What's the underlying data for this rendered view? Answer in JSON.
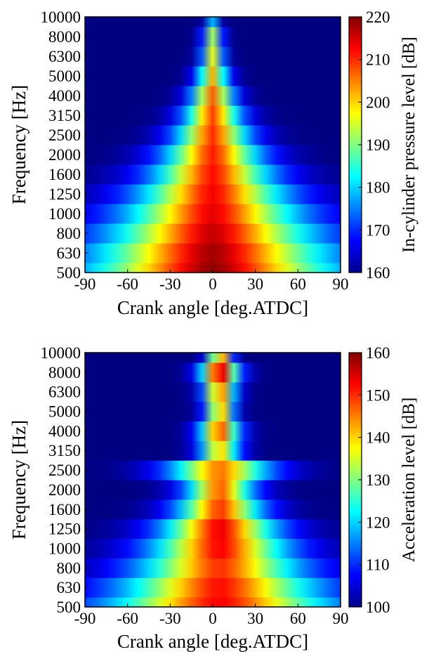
{
  "chart_data": [
    {
      "type": "heatmap",
      "xlabel": "Crank angle [deg.ATDC]",
      "ylabel": "Frequency [Hz]",
      "x_ticks": [
        -90,
        -60,
        -30,
        0,
        30,
        60,
        90
      ],
      "x_tick_labels": [
        "-90",
        "-60",
        "-30",
        "0",
        "30",
        "60",
        "90"
      ],
      "xlim": [
        -90,
        90
      ],
      "y_tick_labels": [
        "500",
        "630",
        "800",
        "1000",
        "1250",
        "1600",
        "2000",
        "2500",
        "3150",
        "4000",
        "5000",
        "6300",
        "8000",
        "10000"
      ],
      "colorbar_label": "In-cylinder pressure level [dB]",
      "colorbar_ticks": [
        160,
        170,
        180,
        190,
        200,
        210,
        220
      ],
      "colorbar_tick_labels": [
        "160",
        "170",
        "180",
        "190",
        "200",
        "210",
        "220"
      ],
      "clim": [
        160,
        220
      ],
      "colormap": "jet",
      "level_by_band": [
        {
          "freq": "500",
          "peak_db": 219,
          "half_width_deg": 88
        },
        {
          "freq": "630",
          "peak_db": 218,
          "half_width_deg": 82
        },
        {
          "freq": "800",
          "peak_db": 216,
          "half_width_deg": 72
        },
        {
          "freq": "1000",
          "peak_db": 214,
          "half_width_deg": 62
        },
        {
          "freq": "1250",
          "peak_db": 213,
          "half_width_deg": 52
        },
        {
          "freq": "1600",
          "peak_db": 212,
          "half_width_deg": 42
        },
        {
          "freq": "2000",
          "peak_db": 211,
          "half_width_deg": 34
        },
        {
          "freq": "2500",
          "peak_db": 210,
          "half_width_deg": 26
        },
        {
          "freq": "3150",
          "peak_db": 209,
          "half_width_deg": 20
        },
        {
          "freq": "4000",
          "peak_db": 207,
          "half_width_deg": 15
        },
        {
          "freq": "5000",
          "peak_db": 202,
          "half_width_deg": 11
        },
        {
          "freq": "6300",
          "peak_db": 196,
          "half_width_deg": 8
        },
        {
          "freq": "8000",
          "peak_db": 192,
          "half_width_deg": 7
        },
        {
          "freq": "10000",
          "peak_db": 178,
          "half_width_deg": 5
        }
      ]
    },
    {
      "type": "heatmap",
      "xlabel": "Crank angle [deg.ATDC]",
      "ylabel": "Frequency [Hz]",
      "x_ticks": [
        -90,
        -60,
        -30,
        0,
        30,
        60,
        90
      ],
      "x_tick_labels": [
        "-90",
        "-60",
        "-30",
        "0",
        "30",
        "60",
        "90"
      ],
      "xlim": [
        -90,
        90
      ],
      "y_tick_labels": [
        "500",
        "630",
        "800",
        "1000",
        "1250",
        "1600",
        "2000",
        "2500",
        "3150",
        "4000",
        "5000",
        "6300",
        "8000",
        "10000"
      ],
      "colorbar_label": "Acceleration level [dB]",
      "colorbar_ticks": [
        100,
        110,
        120,
        130,
        140,
        150,
        160
      ],
      "colorbar_tick_labels": [
        "100",
        "110",
        "120",
        "130",
        "140",
        "150",
        "160"
      ],
      "clim": [
        100,
        160
      ],
      "colormap": "jet",
      "level_by_band": [
        {
          "freq": "500",
          "peak_db": 153,
          "half_width_deg": 80
        },
        {
          "freq": "630",
          "peak_db": 152,
          "half_width_deg": 70
        },
        {
          "freq": "800",
          "peak_db": 150,
          "half_width_deg": 58
        },
        {
          "freq": "1000",
          "peak_db": 153,
          "half_width_deg": 48
        },
        {
          "freq": "1250",
          "peak_db": 154,
          "half_width_deg": 40
        },
        {
          "freq": "1600",
          "peak_db": 150,
          "half_width_deg": 30
        },
        {
          "freq": "2000",
          "peak_db": 148,
          "half_width_deg": 24
        },
        {
          "freq": "2500",
          "peak_db": 146,
          "half_width_deg": 36
        },
        {
          "freq": "3150",
          "peak_db": 142,
          "half_width_deg": 14
        },
        {
          "freq": "4000",
          "peak_db": 150,
          "half_width_deg": 14
        },
        {
          "freq": "5000",
          "peak_db": 145,
          "half_width_deg": 10
        },
        {
          "freq": "6300",
          "peak_db": 148,
          "half_width_deg": 11
        },
        {
          "freq": "8000",
          "peak_db": 158,
          "half_width_deg": 13
        },
        {
          "freq": "10000",
          "peak_db": 150,
          "half_width_deg": 8
        }
      ]
    }
  ]
}
